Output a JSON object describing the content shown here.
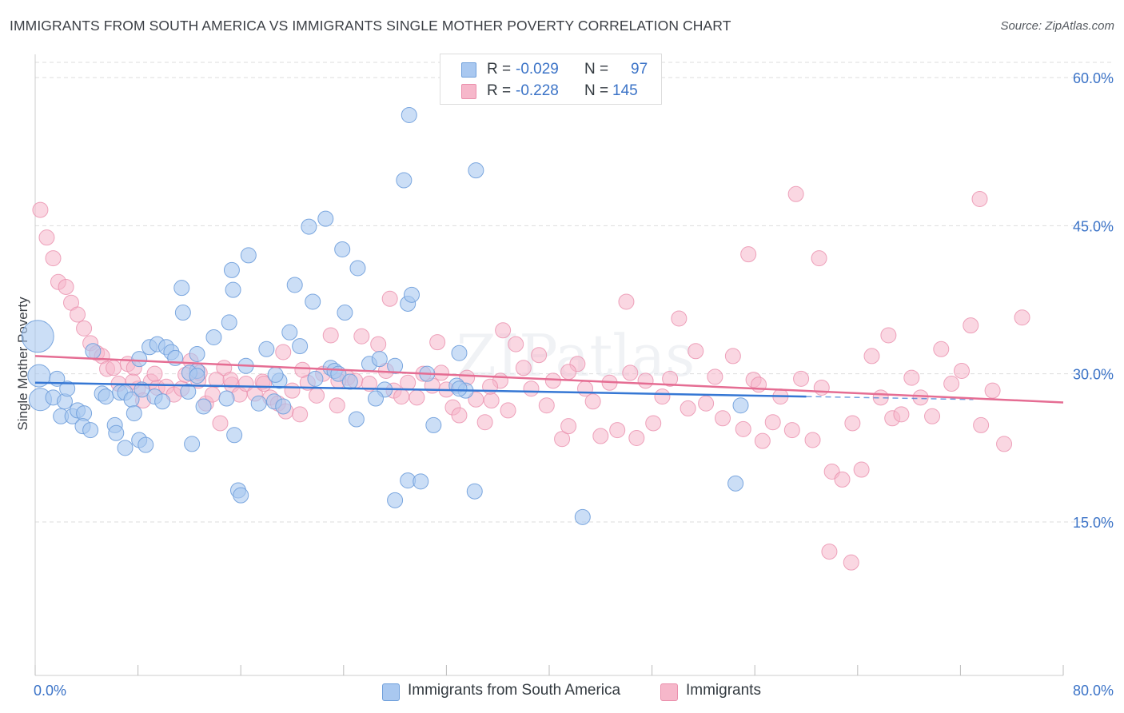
{
  "title": "IMMIGRANTS FROM SOUTH AMERICA VS IMMIGRANTS SINGLE MOTHER POVERTY CORRELATION CHART",
  "source": "Source: ZipAtlas.com",
  "watermark": "ZIPatlas",
  "stats": {
    "blue": {
      "r_label": "R =",
      "r_value": "-0.029",
      "n_label": "N =",
      "n_value": "97"
    },
    "pink": {
      "r_label": "R =",
      "r_value": "-0.228",
      "n_label": "N =",
      "n_value": "145"
    }
  },
  "legend": {
    "blue_label": "Immigrants from South America",
    "pink_label": "Immigrants"
  },
  "colors": {
    "blue_fill": "#a9c8f0",
    "blue_stroke": "#6f9fdb",
    "blue_line": "#3577d4",
    "pink_fill": "#f6b7ca",
    "pink_stroke": "#ea8fac",
    "pink_line": "#e56d93",
    "tick_label": "#3b73c7",
    "grid": "#dddddd"
  },
  "chart_data": {
    "type": "scatter",
    "title": "IMMIGRANTS FROM SOUTH AMERICA VS IMMIGRANTS SINGLE MOTHER POVERTY CORRELATION CHART",
    "xlabel": "",
    "ylabel": "Single Mother Poverty",
    "xlim": [
      0,
      80
    ],
    "ylim": [
      0,
      63
    ],
    "x_tick_labels": [
      "0.0%",
      "80.0%"
    ],
    "y_ticks": [
      15,
      30,
      45,
      60
    ],
    "y_tick_labels": [
      "15.0%",
      "30.0%",
      "45.0%",
      "60.0%"
    ],
    "grid": true,
    "legend_position": "bottom-center",
    "series": [
      {
        "name": "Immigrants from South America",
        "color": "#a9c8f0",
        "trend": {
          "x0": 0,
          "y0": 29.1,
          "x1": 60,
          "y1": 27.7,
          "dashed_to_x": 73,
          "dashed_to_y": 27.4
        },
        "points": [
          [
            0.2,
            33.8,
            3
          ],
          [
            0.3,
            29.8,
            2
          ],
          [
            0.4,
            27.4,
            2
          ],
          [
            1.4,
            27.6,
            1
          ],
          [
            1.7,
            29.5,
            1
          ],
          [
            2.0,
            25.7,
            1
          ],
          [
            2.3,
            27.2,
            1
          ],
          [
            2.5,
            28.5,
            1
          ],
          [
            2.9,
            25.7,
            1
          ],
          [
            3.3,
            26.3,
            1
          ],
          [
            3.8,
            26.0,
            1
          ],
          [
            3.7,
            24.7,
            1
          ],
          [
            4.3,
            24.3,
            1
          ],
          [
            4.5,
            32.3,
            1
          ],
          [
            5.2,
            28.0,
            1
          ],
          [
            5.5,
            27.7,
            1
          ],
          [
            6.2,
            24.8,
            1
          ],
          [
            6.3,
            24.0,
            1
          ],
          [
            6.6,
            28.1,
            1
          ],
          [
            7.0,
            28.1,
            1
          ],
          [
            7.0,
            22.5,
            1
          ],
          [
            7.5,
            27.4,
            1
          ],
          [
            7.7,
            26.0,
            1
          ],
          [
            8.1,
            23.3,
            1
          ],
          [
            8.6,
            22.8,
            1
          ],
          [
            8.1,
            31.5,
            1
          ],
          [
            8.9,
            32.7,
            1
          ],
          [
            9.3,
            27.7,
            1
          ],
          [
            9.5,
            33.0,
            1
          ],
          [
            9.9,
            27.2,
            1
          ],
          [
            10.2,
            32.7,
            1
          ],
          [
            10.6,
            32.2,
            1
          ],
          [
            11.4,
            38.7,
            1
          ],
          [
            11.5,
            36.2,
            1
          ],
          [
            11.9,
            28.2,
            1
          ],
          [
            12.6,
            32.0,
            1
          ],
          [
            12.6,
            30.3,
            1
          ],
          [
            12.2,
            22.9,
            1
          ],
          [
            13.1,
            26.7,
            1
          ],
          [
            13.9,
            33.7,
            1
          ],
          [
            15.1,
            35.2,
            1
          ],
          [
            14.9,
            27.5,
            1
          ],
          [
            15.3,
            40.5,
            1
          ],
          [
            15.4,
            38.5,
            1
          ],
          [
            15.5,
            23.8,
            1
          ],
          [
            15.8,
            18.2,
            1
          ],
          [
            16.4,
            30.8,
            1
          ],
          [
            17.4,
            27.0,
            1
          ],
          [
            18.6,
            27.2,
            1
          ],
          [
            19.0,
            29.3,
            1
          ],
          [
            19.8,
            34.2,
            1
          ],
          [
            19.3,
            26.7,
            1
          ],
          [
            20.2,
            39.0,
            1
          ],
          [
            20.6,
            32.8,
            1
          ],
          [
            21.6,
            37.3,
            1
          ],
          [
            23.0,
            30.6,
            1
          ],
          [
            22.6,
            45.7,
            1
          ],
          [
            23.3,
            30.3,
            1
          ],
          [
            24.1,
            36.2,
            1
          ],
          [
            23.6,
            30.0,
            1
          ],
          [
            25.1,
            40.7,
            1
          ],
          [
            25.0,
            25.4,
            1
          ],
          [
            26.0,
            31.0,
            1
          ],
          [
            26.8,
            31.5,
            1
          ],
          [
            28.0,
            30.8,
            1
          ],
          [
            29.0,
            37.1,
            1
          ],
          [
            29.0,
            19.2,
            1
          ],
          [
            30.5,
            30.0,
            1
          ],
          [
            31.0,
            24.8,
            1
          ],
          [
            32.8,
            28.8,
            1
          ],
          [
            33.5,
            28.3,
            1
          ],
          [
            34.3,
            50.6,
            1
          ],
          [
            42.6,
            15.5,
            1
          ],
          [
            54.5,
            18.9,
            1
          ],
          [
            54.9,
            26.8,
            1
          ],
          [
            10.9,
            31.6,
            1
          ],
          [
            12.0,
            30.1,
            1
          ],
          [
            16.0,
            17.7,
            1
          ],
          [
            18.0,
            32.5,
            1
          ],
          [
            21.8,
            29.5,
            1
          ],
          [
            24.5,
            29.2,
            1
          ],
          [
            27.2,
            28.4,
            1
          ],
          [
            28.0,
            17.2,
            1
          ],
          [
            30.0,
            19.1,
            1
          ],
          [
            33.0,
            32.1,
            1
          ],
          [
            29.1,
            56.2,
            1
          ],
          [
            28.7,
            49.6,
            1
          ],
          [
            29.3,
            38.0,
            1
          ],
          [
            33.0,
            28.5,
            1
          ],
          [
            34.2,
            18.1,
            1
          ],
          [
            21.3,
            44.9,
            1
          ],
          [
            23.9,
            42.6,
            1
          ],
          [
            16.6,
            42.0,
            1
          ],
          [
            18.7,
            29.9,
            1
          ],
          [
            12.6,
            29.8,
            1
          ],
          [
            26.5,
            27.5,
            1
          ],
          [
            8.3,
            28.4,
            1
          ]
        ]
      },
      {
        "name": "Immigrants",
        "color": "#f6b7ca",
        "trend": {
          "x0": 0,
          "y0": 31.8,
          "x1": 80,
          "y1": 27.1
        },
        "points": [
          [
            0.4,
            46.6
          ],
          [
            0.9,
            43.8
          ],
          [
            1.4,
            41.7
          ],
          [
            1.8,
            39.3
          ],
          [
            2.4,
            38.8
          ],
          [
            2.8,
            37.2
          ],
          [
            3.3,
            36.0
          ],
          [
            3.8,
            34.6
          ],
          [
            4.3,
            33.1
          ],
          [
            4.8,
            32.1
          ],
          [
            5.2,
            31.8
          ],
          [
            5.6,
            30.5
          ],
          [
            6.1,
            30.6
          ],
          [
            6.5,
            29.0
          ],
          [
            7.2,
            31.0
          ],
          [
            7.7,
            30.6
          ],
          [
            8.0,
            28.5
          ],
          [
            8.4,
            27.3
          ],
          [
            9.0,
            29.2
          ],
          [
            9.5,
            28.6
          ],
          [
            10.2,
            28.7
          ],
          [
            10.8,
            27.9
          ],
          [
            11.4,
            28.5
          ],
          [
            12.1,
            31.3
          ],
          [
            12.7,
            29.3
          ],
          [
            13.3,
            27.0
          ],
          [
            13.8,
            27.9
          ],
          [
            14.4,
            25.0
          ],
          [
            14.7,
            30.6
          ],
          [
            15.3,
            28.9
          ],
          [
            15.9,
            27.9
          ],
          [
            16.4,
            29.0
          ],
          [
            17.1,
            28.0
          ],
          [
            17.7,
            29.2
          ],
          [
            18.3,
            27.6
          ],
          [
            18.9,
            27.0
          ],
          [
            19.5,
            26.2
          ],
          [
            20.0,
            28.3
          ],
          [
            20.6,
            25.9
          ],
          [
            21.2,
            29.1
          ],
          [
            21.9,
            27.8
          ],
          [
            22.4,
            30.0
          ],
          [
            23.0,
            33.9
          ],
          [
            23.5,
            26.8
          ],
          [
            24.3,
            29.6
          ],
          [
            24.9,
            29.3
          ],
          [
            25.4,
            33.8
          ],
          [
            26.0,
            29.0
          ],
          [
            26.7,
            33.0
          ],
          [
            27.3,
            30.3
          ],
          [
            27.9,
            28.3
          ],
          [
            28.5,
            27.7
          ],
          [
            29.0,
            29.1
          ],
          [
            29.7,
            27.6
          ],
          [
            30.2,
            30.0
          ],
          [
            30.9,
            28.8
          ],
          [
            31.3,
            33.2
          ],
          [
            32.0,
            28.4
          ],
          [
            32.5,
            26.6
          ],
          [
            33.0,
            25.8
          ],
          [
            33.6,
            29.6
          ],
          [
            34.3,
            27.4
          ],
          [
            35.0,
            25.1
          ],
          [
            35.5,
            27.3
          ],
          [
            36.2,
            29.3
          ],
          [
            36.8,
            26.3
          ],
          [
            37.4,
            33.0
          ],
          [
            38.0,
            30.6
          ],
          [
            38.6,
            28.5
          ],
          [
            39.2,
            31.9
          ],
          [
            39.8,
            26.8
          ],
          [
            40.3,
            29.3
          ],
          [
            41.0,
            23.4
          ],
          [
            41.5,
            24.7
          ],
          [
            42.2,
            31.0
          ],
          [
            42.8,
            28.5
          ],
          [
            43.4,
            27.2
          ],
          [
            44.0,
            23.7
          ],
          [
            44.7,
            29.1
          ],
          [
            45.3,
            24.3
          ],
          [
            46.0,
            37.3
          ],
          [
            46.8,
            23.5
          ],
          [
            47.5,
            29.3
          ],
          [
            48.1,
            25.0
          ],
          [
            48.8,
            27.7
          ],
          [
            49.4,
            29.5
          ],
          [
            50.1,
            35.6
          ],
          [
            50.8,
            26.5
          ],
          [
            51.4,
            32.3
          ],
          [
            52.2,
            27.0
          ],
          [
            52.9,
            29.7
          ],
          [
            53.5,
            25.5
          ],
          [
            54.3,
            31.8
          ],
          [
            55.1,
            24.4
          ],
          [
            55.9,
            29.4
          ],
          [
            56.6,
            23.2
          ],
          [
            57.4,
            25.1
          ],
          [
            58.0,
            27.7
          ],
          [
            58.9,
            24.3
          ],
          [
            59.6,
            29.5
          ],
          [
            60.5,
            23.3
          ],
          [
            61.2,
            28.6
          ],
          [
            62.0,
            20.1
          ],
          [
            62.8,
            19.3
          ],
          [
            63.6,
            25.0
          ],
          [
            64.3,
            20.3
          ],
          [
            65.1,
            31.8
          ],
          [
            65.8,
            27.6
          ],
          [
            66.7,
            25.5
          ],
          [
            67.4,
            25.9
          ],
          [
            68.2,
            29.6
          ],
          [
            68.9,
            27.6
          ],
          [
            69.8,
            25.7
          ],
          [
            70.5,
            32.5
          ],
          [
            71.3,
            29.0
          ],
          [
            72.1,
            30.3
          ],
          [
            72.8,
            34.9
          ],
          [
            73.6,
            24.8
          ],
          [
            74.5,
            28.3
          ],
          [
            75.4,
            22.9
          ],
          [
            76.8,
            35.7
          ],
          [
            61.0,
            41.7
          ],
          [
            61.8,
            12.0
          ],
          [
            63.5,
            10.9
          ],
          [
            55.5,
            42.1
          ],
          [
            59.2,
            48.2
          ],
          [
            73.5,
            47.7
          ],
          [
            66.4,
            33.9
          ],
          [
            19.3,
            32.2
          ],
          [
            36.4,
            34.4
          ],
          [
            41.5,
            30.2
          ],
          [
            12.8,
            30.1
          ],
          [
            27.6,
            37.6
          ],
          [
            15.2,
            29.4
          ],
          [
            20.8,
            30.4
          ],
          [
            31.6,
            30.1
          ],
          [
            46.3,
            30.1
          ],
          [
            17.8,
            29.0
          ],
          [
            7.6,
            29.2
          ],
          [
            9.3,
            30.0
          ],
          [
            11.7,
            29.9
          ],
          [
            14.1,
            29.4
          ],
          [
            56.3,
            28.9
          ],
          [
            23.6,
            29.3
          ],
          [
            35.4,
            28.7
          ]
        ]
      }
    ]
  }
}
